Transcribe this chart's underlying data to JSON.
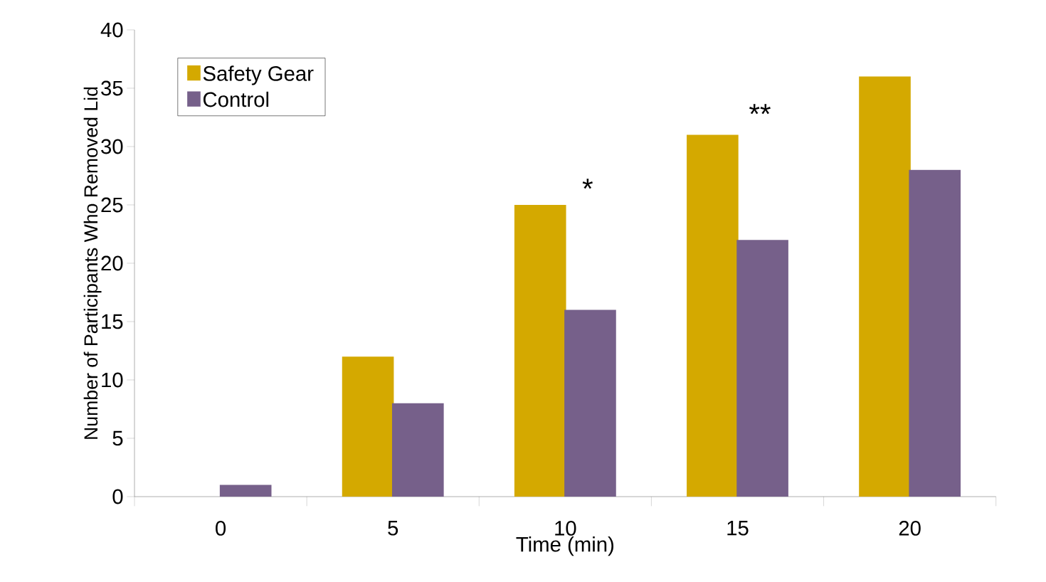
{
  "chart_data": {
    "type": "bar",
    "xlabel": "Time (min)",
    "ylabel": "Number of Participants Who Removed Lid",
    "categories": [
      "0",
      "5",
      "10",
      "15",
      "20"
    ],
    "series": [
      {
        "name": "Safety Gear",
        "color": "#d4a900",
        "values": [
          0,
          12,
          25,
          31,
          36
        ]
      },
      {
        "name": "Control",
        "color": "#76608a",
        "values": [
          1,
          8,
          16,
          22,
          28
        ]
      }
    ],
    "ylim": [
      0,
      40
    ],
    "yticks": [
      0,
      5,
      10,
      15,
      20,
      25,
      30,
      35,
      40
    ],
    "annotations": [
      "*",
      "**"
    ],
    "legend": "top left",
    "grid": false
  }
}
